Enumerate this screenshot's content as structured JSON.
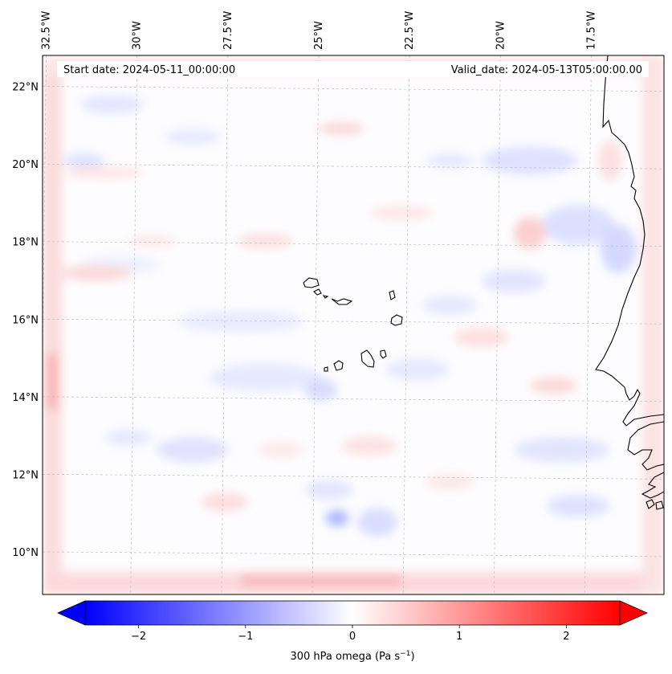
{
  "map": {
    "start_date_text": "Start date: 2024-05-11_00:00:00",
    "valid_date_text": "Valid_date: 2024-05-13T05:00:00.00",
    "lon_ticks": [
      "32.5°W",
      "30°W",
      "27.5°W",
      "25°W",
      "22.5°W",
      "20°W",
      "17.5°W"
    ],
    "lat_ticks": [
      "22°N",
      "20°N",
      "18°N",
      "16°N",
      "14°N",
      "12°N",
      "10°N"
    ],
    "lon_range": [
      -32.6,
      -15.5
    ],
    "lat_range": [
      8.9,
      22.8
    ],
    "gridlines": true,
    "coastline_color": "#000000"
  },
  "colorbar": {
    "label_text": "300 hPa omega (Pa s",
    "label_sup": "−1",
    "label_end": ")",
    "tick_labels": [
      "−2",
      "−1",
      "0",
      "1",
      "2"
    ],
    "tick_values": [
      -2,
      -1,
      0,
      1,
      2
    ],
    "range": [
      -2.5,
      2.5
    ],
    "extend": "both",
    "color_min": "#0000ff",
    "color_mid": "#ffffff",
    "color_max": "#ff0000"
  }
}
